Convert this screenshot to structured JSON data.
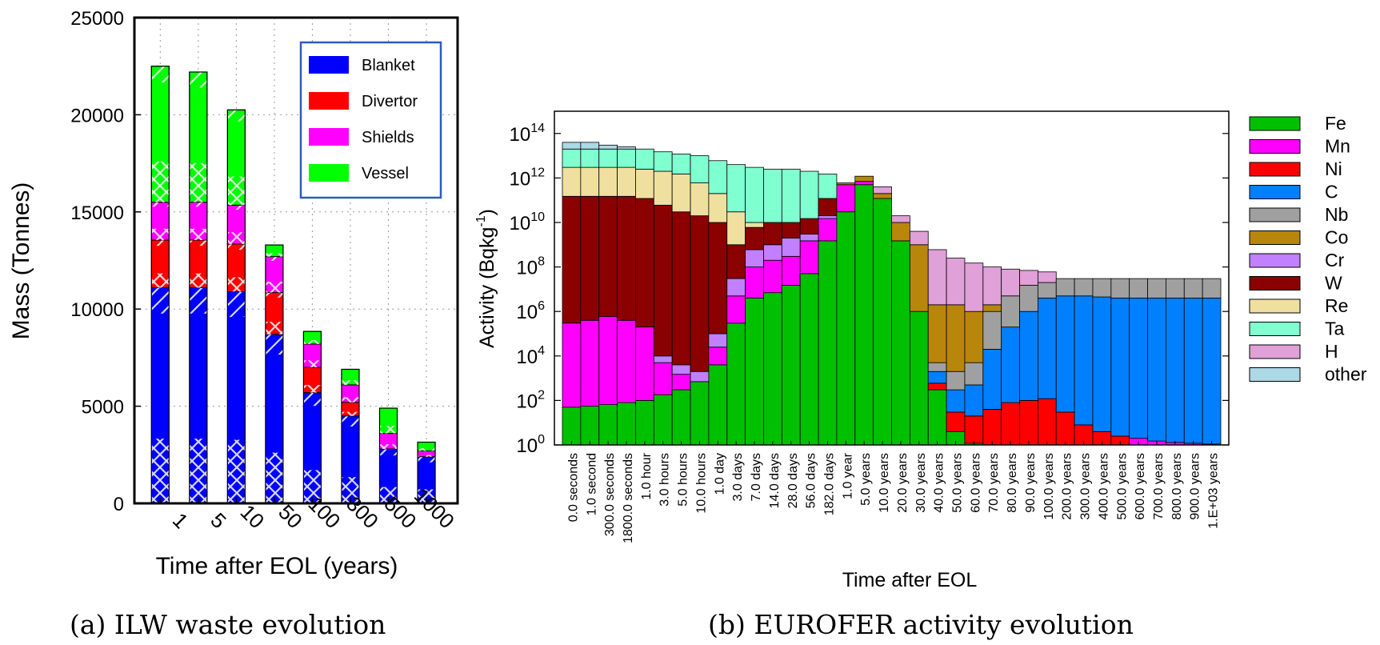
{
  "chart_data": [
    {
      "type": "bar",
      "stacked": true,
      "caption": "(a) ILW waste evolution",
      "xlabel": "Time after EOL (years)",
      "ylabel": "Mass (Tonnes)",
      "ylim": [
        0,
        25000
      ],
      "yticks": [
        "0",
        "5000",
        "10000",
        "15000",
        "20000",
        "25000"
      ],
      "grid": true,
      "legend_position": "top-right",
      "categories": [
        "1",
        "5",
        "10",
        "50",
        "100",
        "300",
        "500",
        "1000"
      ],
      "series": [
        {
          "name": "Blanket",
          "color": "#0000ff",
          "values": [
            11100,
            11100,
            10900,
            8700,
            5700,
            4500,
            2800,
            2400
          ]
        },
        {
          "name": "Divertor",
          "color": "#ff0000",
          "values": [
            2450,
            2450,
            2450,
            2150,
            1300,
            700,
            0,
            0
          ]
        },
        {
          "name": "Shields",
          "color": "#ff00ff",
          "values": [
            1950,
            1950,
            2000,
            1850,
            1200,
            900,
            800,
            300
          ]
        },
        {
          "name": "Vessel",
          "color": "#00ff00",
          "values": [
            7000,
            6700,
            4900,
            600,
            650,
            800,
            1300,
            450
          ]
        }
      ]
    },
    {
      "type": "bar",
      "stacked": true,
      "log_y": true,
      "caption": "(b) EUROFER activity evolution",
      "xlabel": "Time after EOL",
      "ylabel": "Activity (Bqkg",
      "ylabel_sup": "-1",
      "ylabel_close": ")",
      "ylim": [
        1,
        1000000000000000.0
      ],
      "ytick_base": "10",
      "yticks": [
        {
          "value": 1,
          "exp": "0"
        },
        {
          "value": 100,
          "exp": "2"
        },
        {
          "value": 10000,
          "exp": "4"
        },
        {
          "value": 1000000,
          "exp": "6"
        },
        {
          "value": 100000000,
          "exp": "8"
        },
        {
          "value": 10000000000,
          "exp": "10"
        },
        {
          "value": 1000000000000,
          "exp": "12"
        },
        {
          "value": 100000000000000,
          "exp": "14"
        }
      ],
      "legend_position": "right",
      "categories": [
        "0.0 seconds",
        "1.0 second",
        "300.0 seconds",
        "1800.0 seconds",
        "1.0 hour",
        "3.0 hours",
        "5.0 hours",
        "10.0 hours",
        "1.0 day",
        "3.0 days",
        "7.0 days",
        "14.0 days",
        "28.0 days",
        "56.0 days",
        "182.0 days",
        "1.0 year",
        "5.0 years",
        "10.0 years",
        "20.0 years",
        "30.0 years",
        "40.0 years",
        "50.0 years",
        "60.0 years",
        "70.0 years",
        "80.0 years",
        "90.0 years",
        "100.0 years",
        "200.0 years",
        "300.0 years",
        "400.0 years",
        "500.0 years",
        "600.0 years",
        "700.0 years",
        "800.0 years",
        "900.0 years",
        "1.E+03 years"
      ],
      "series": [
        {
          "name": "Fe",
          "color": "#00c000",
          "tops": [
            50,
            55,
            65,
            80,
            100,
            180,
            300,
            700,
            4000,
            300000,
            4000000,
            7000000,
            15000000,
            50000000,
            1500000000.0,
            30000000000.0,
            500000000000.0,
            120000000000.0,
            1500000000.0,
            1000000.0,
            300,
            4,
            1.2,
            1,
            1,
            1,
            1,
            1,
            1,
            1,
            1,
            1,
            1,
            1,
            1,
            1
          ]
        },
        {
          "name": "Mn",
          "color": "#ff00ff",
          "tops": [
            300000.0,
            400000.0,
            600000.0,
            400000.0,
            200000.0,
            5000.0,
            1500.0,
            500.0,
            25000.0,
            5000000.0,
            100000000.0,
            200000000.0,
            300000000.0,
            1500000000.0,
            15000000000.0,
            500000000000.0,
            700000000000.0,
            120000000000.0,
            1500000000.0,
            1000000.0,
            300,
            4,
            1.2,
            1,
            1,
            1,
            1,
            1,
            1,
            1,
            1,
            2,
            1.5,
            1.3,
            1.2,
            1.1
          ]
        },
        {
          "name": "Ni",
          "color": "#ff0000",
          "tops": [
            300000.0,
            400000.0,
            600000.0,
            400000.0,
            200000.0,
            5000.0,
            1500.0,
            500.0,
            25000.0,
            5000000.0,
            100000000.0,
            200000000.0,
            300000000.0,
            1500000000.0,
            15000000000.0,
            500000000000.0,
            700000000000.0,
            120000000000.0,
            1500000000.0,
            1000000.0,
            600,
            30,
            20,
            40,
            80,
            100,
            120,
            30,
            8,
            4,
            2.5,
            2,
            1.5,
            1.3,
            1.2,
            1.1
          ]
        },
        {
          "name": "C",
          "color": "#0080ff",
          "tops": [
            300000.0,
            400000.0,
            600000.0,
            400000.0,
            200000.0,
            5000.0,
            1500.0,
            500.0,
            25000.0,
            5000000.0,
            100000000.0,
            200000000.0,
            300000000.0,
            1500000000.0,
            15000000000.0,
            500000000000.0,
            700000000000.0,
            120000000000.0,
            1500000000.0,
            1000000.0,
            2000.0,
            300,
            500,
            20000.0,
            200000.0,
            1000000.0,
            4000000.0,
            5000000.0,
            5000000.0,
            4500000.0,
            4000000.0,
            4000000.0,
            4000000.0,
            4000000.0,
            4000000.0,
            4000000.0
          ]
        },
        {
          "name": "Nb",
          "color": "#a0a0a0",
          "tops": [
            300000.0,
            400000.0,
            600000.0,
            400000.0,
            200000.0,
            5000.0,
            1500.0,
            500.0,
            25000.0,
            5000000.0,
            100000000.0,
            200000000.0,
            300000000.0,
            1500000000.0,
            15000000000.0,
            500000000000.0,
            700000000000.0,
            120000000000.0,
            1500000000.0,
            1000000.0,
            5000.0,
            2000.0,
            5000.0,
            1000000.0,
            5000000.0,
            15000000.0,
            20000000.0,
            30000000.0,
            30000000.0,
            30000000.0,
            30000000.0,
            30000000.0,
            30000000.0,
            30000000.0,
            30000000.0,
            30000000.0
          ]
        },
        {
          "name": "Co",
          "color": "#b8860b",
          "tops": [
            300000.0,
            400000.0,
            600000.0,
            400000.0,
            200000.0,
            5000.0,
            1500.0,
            500.0,
            25000.0,
            5000000.0,
            100000000.0,
            200000000.0,
            300000000.0,
            1500000000.0,
            15000000000.0,
            600000000000.0,
            1200000000000.0,
            200000000000.0,
            10000000000.0,
            1000000000.0,
            2000000.0,
            2000000.0,
            1000000.0,
            2000000.0,
            5000000.0,
            15000000.0,
            20000000.0,
            30000000.0,
            30000000.0,
            30000000.0,
            30000000.0,
            30000000.0,
            30000000.0,
            30000000.0,
            30000000.0,
            30000000.0
          ]
        },
        {
          "name": "Cr",
          "color": "#c080ff",
          "tops": [
            300000.0,
            400000.0,
            600000.0,
            400000.0,
            200000.0,
            10000.0,
            4000.0,
            2000.0,
            100000.0,
            30000000.0,
            600000000.0,
            1000000000.0,
            2000000000.0,
            3000000000.0,
            20000000000.0,
            600000000000.0,
            1200000000000.0,
            200000000000.0,
            10000000000.0,
            1000000000.0,
            2000000.0,
            2000000.0,
            1000000.0,
            2000000.0,
            5000000.0,
            15000000.0,
            20000000.0,
            30000000.0,
            30000000.0,
            30000000.0,
            30000000.0,
            30000000.0,
            30000000.0,
            30000000.0,
            30000000.0,
            30000000.0
          ]
        },
        {
          "name": "W",
          "color": "#8b0000",
          "tops": [
            150000000000.0,
            150000000000.0,
            150000000000.0,
            150000000000.0,
            120000000000.0,
            60000000000.0,
            30000000000.0,
            20000000000.0,
            10000000000.0,
            1000000000.0,
            6000000000.0,
            10000000000.0,
            10000000000.0,
            15000000000.0,
            120000000000.0,
            600000000000.0,
            1200000000000.0,
            200000000000.0,
            10000000000.0,
            1000000000.0,
            2000000.0,
            2000000.0,
            1000000.0,
            2000000.0,
            5000000.0,
            15000000.0,
            20000000.0,
            30000000.0,
            30000000.0,
            30000000.0,
            30000000.0,
            30000000.0,
            30000000.0,
            30000000.0,
            30000000.0,
            30000000.0
          ]
        },
        {
          "name": "Re",
          "color": "#f0e0a0",
          "tops": [
            3000000000000.0,
            3000000000000.0,
            3000000000000.0,
            3000000000000.0,
            2500000000000.0,
            2000000000000.0,
            1500000000000.0,
            600000000000.0,
            200000000000.0,
            30000000000.0,
            10000000000.0,
            10000000000.0,
            10000000000.0,
            15000000000.0,
            120000000000.0,
            600000000000.0,
            1200000000000.0,
            200000000000.0,
            10000000000.0,
            1000000000.0,
            2000000.0,
            2000000.0,
            1000000.0,
            2000000.0,
            5000000.0,
            15000000.0,
            20000000.0,
            30000000.0,
            30000000.0,
            30000000.0,
            30000000.0,
            30000000.0,
            30000000.0,
            30000000.0,
            30000000.0,
            30000000.0
          ]
        },
        {
          "name": "Ta",
          "color": "#80ffd0",
          "tops": [
            20000000000000.0,
            20000000000000.0,
            20000000000000.0,
            20000000000000.0,
            20000000000000.0,
            15000000000000.0,
            12000000000000.0,
            10000000000000.0,
            6000000000000.0,
            4000000000000.0,
            3000000000000.0,
            2500000000000.0,
            2500000000000.0,
            2000000000000.0,
            1500000000000.0,
            600000000000.0,
            1200000000000.0,
            200000000000.0,
            10000000000.0,
            1000000000.0,
            2000000.0,
            2000000.0,
            1000000.0,
            2000000.0,
            5000000.0,
            15000000.0,
            20000000.0,
            30000000.0,
            30000000.0,
            30000000.0,
            30000000.0,
            30000000.0,
            30000000.0,
            30000000.0,
            30000000.0,
            30000000.0
          ]
        },
        {
          "name": "H",
          "color": "#e0a0d8",
          "tops": [
            20000000000000.0,
            20000000000000.0,
            20000000000000.0,
            20000000000000.0,
            20000000000000.0,
            15000000000000.0,
            12000000000000.0,
            10000000000000.0,
            6000000000000.0,
            4000000000000.0,
            3000000000000.0,
            2500000000000.0,
            2500000000000.0,
            2000000000000.0,
            1500000000000.0,
            600000000000.0,
            1200000000000.0,
            400000000000.0,
            20000000000.0,
            4000000000.0,
            600000000.0,
            250000000.0,
            150000000.0,
            100000000.0,
            80000000.0,
            70000000.0,
            60000000.0,
            30000000.0,
            30000000.0,
            30000000.0,
            30000000.0,
            30000000.0,
            30000000.0,
            30000000.0,
            30000000.0,
            30000000.0
          ]
        },
        {
          "name": "other",
          "color": "#add8e6",
          "tops": [
            40000000000000.0,
            40000000000000.0,
            30000000000000.0,
            25000000000000.0,
            20000000000000.0,
            15000000000000.0,
            12000000000000.0,
            10000000000000.0,
            6000000000000.0,
            4000000000000.0,
            3000000000000.0,
            2500000000000.0,
            2500000000000.0,
            2000000000000.0,
            1500000000000.0,
            600000000000.0,
            1200000000000.0,
            400000000000.0,
            20000000000.0,
            4000000000.0,
            600000000.0,
            250000000.0,
            150000000.0,
            100000000.0,
            80000000.0,
            70000000.0,
            60000000.0,
            30000000.0,
            30000000.0,
            30000000.0,
            30000000.0,
            30000000.0,
            30000000.0,
            30000000.0,
            30000000.0,
            30000000.0
          ]
        }
      ]
    }
  ]
}
